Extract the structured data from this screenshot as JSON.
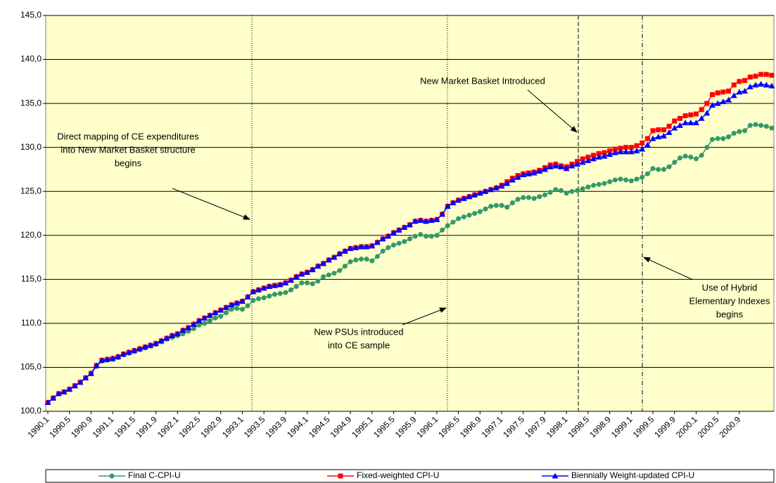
{
  "chart_data": {
    "type": "line",
    "categories": [
      "1990.1",
      null,
      null,
      null,
      "1990.5",
      null,
      null,
      null,
      "1990.9",
      null,
      null,
      null,
      "1991.1",
      null,
      null,
      null,
      "1991.5",
      null,
      null,
      null,
      "1991.9",
      null,
      null,
      null,
      "1992.1",
      null,
      null,
      null,
      "1992.5",
      null,
      null,
      null,
      "1992.9",
      null,
      null,
      null,
      "1993.1",
      null,
      null,
      null,
      "1993.5",
      null,
      null,
      null,
      "1993.9",
      null,
      null,
      null,
      "1994.1",
      null,
      null,
      null,
      "1994.5",
      null,
      null,
      null,
      "1994.9",
      null,
      null,
      null,
      "1995.1",
      null,
      null,
      null,
      "1995.5",
      null,
      null,
      null,
      "1995.9",
      null,
      null,
      null,
      "1996.1",
      null,
      null,
      null,
      "1996.5",
      null,
      null,
      null,
      "1996.9",
      null,
      null,
      null,
      "1997.1",
      null,
      null,
      null,
      "1997.5",
      null,
      null,
      null,
      "1997.9",
      null,
      null,
      null,
      "1998.1",
      null,
      null,
      null,
      "1998.5",
      null,
      null,
      null,
      "1998.9",
      null,
      null,
      null,
      "1999.1",
      null,
      null,
      null,
      "1999.5",
      null,
      null,
      null,
      "1999.9",
      null,
      null,
      null,
      "2000.1",
      null,
      null,
      null,
      "2000.5",
      null,
      null,
      null,
      "2000.9",
      null,
      null,
      null,
      null,
      null,
      null
    ],
    "series": [
      {
        "name": "Final C-CPI-U",
        "color": "#339966",
        "marker": "circle",
        "values": [
          101.0,
          101.5,
          102.0,
          102.2,
          102.5,
          102.9,
          103.3,
          103.8,
          104.3,
          105.1,
          105.7,
          105.8,
          105.9,
          106.1,
          106.4,
          106.6,
          106.8,
          107.0,
          107.2,
          107.4,
          107.6,
          107.9,
          108.2,
          108.4,
          108.6,
          108.8,
          109.1,
          109.4,
          109.8,
          110.0,
          110.3,
          110.6,
          110.8,
          111.2,
          111.6,
          111.7,
          111.6,
          112.0,
          112.6,
          112.8,
          112.9,
          113.1,
          113.3,
          113.4,
          113.5,
          113.8,
          114.2,
          114.6,
          114.6,
          114.5,
          114.8,
          115.3,
          115.5,
          115.7,
          116.0,
          116.5,
          117.0,
          117.2,
          117.3,
          117.3,
          117.1,
          117.6,
          118.2,
          118.6,
          118.9,
          119.1,
          119.3,
          119.6,
          119.9,
          120.1,
          119.9,
          119.9,
          120.0,
          120.6,
          121.1,
          121.5,
          121.9,
          122.1,
          122.3,
          122.5,
          122.7,
          123.0,
          123.3,
          123.4,
          123.4,
          123.2,
          123.7,
          124.1,
          124.3,
          124.3,
          124.2,
          124.4,
          124.6,
          124.9,
          125.2,
          125.1,
          124.8,
          125.0,
          125.1,
          125.3,
          125.5,
          125.7,
          125.8,
          125.9,
          126.1,
          126.3,
          126.4,
          126.3,
          126.2,
          126.4,
          126.6,
          127.0,
          127.6,
          127.5,
          127.5,
          127.8,
          128.3,
          128.8,
          129.0,
          128.9,
          128.7,
          129.1,
          130.0,
          130.9,
          131.0,
          131.0,
          131.2,
          131.6,
          131.8,
          131.9,
          132.5,
          132.6,
          132.5,
          132.4,
          132.2
        ]
      },
      {
        "name": "Fixed-weighted CPI-U",
        "color": "#ff0000",
        "marker": "square",
        "values": [
          101.0,
          101.5,
          102.0,
          102.2,
          102.5,
          102.9,
          103.3,
          103.8,
          104.3,
          105.2,
          105.8,
          105.9,
          106.0,
          106.2,
          106.5,
          106.7,
          106.9,
          107.1,
          107.3,
          107.5,
          107.7,
          108.0,
          108.3,
          108.6,
          108.8,
          109.2,
          109.5,
          109.9,
          110.3,
          110.6,
          110.9,
          111.2,
          111.5,
          111.8,
          112.1,
          112.3,
          112.5,
          113.0,
          113.6,
          113.8,
          114.0,
          114.2,
          114.3,
          114.4,
          114.6,
          114.9,
          115.3,
          115.6,
          115.8,
          116.1,
          116.5,
          116.8,
          117.2,
          117.5,
          117.9,
          118.2,
          118.5,
          118.6,
          118.7,
          118.7,
          118.8,
          119.2,
          119.6,
          119.9,
          120.3,
          120.6,
          120.9,
          121.2,
          121.6,
          121.7,
          121.6,
          121.7,
          121.8,
          122.4,
          123.3,
          123.7,
          124.0,
          124.2,
          124.4,
          124.6,
          124.8,
          125.0,
          125.2,
          125.4,
          125.7,
          126.1,
          126.5,
          126.8,
          127.0,
          127.1,
          127.2,
          127.4,
          127.7,
          128.0,
          128.1,
          127.9,
          127.8,
          128.1,
          128.4,
          128.7,
          128.9,
          129.1,
          129.3,
          129.4,
          129.6,
          129.8,
          129.9,
          130.0,
          130.0,
          130.2,
          130.5,
          131.0,
          131.9,
          132.0,
          132.0,
          132.4,
          133.0,
          133.3,
          133.6,
          133.7,
          133.8,
          134.3,
          135.0,
          136.0,
          136.2,
          136.3,
          136.4,
          137.1,
          137.5,
          137.6,
          138.0,
          138.1,
          138.3,
          138.3,
          138.2
        ]
      },
      {
        "name": "Biennially Weight-updated CPI-U",
        "color": "#0000ff",
        "marker": "triangle",
        "values": [
          101.0,
          101.5,
          102.0,
          102.2,
          102.5,
          102.9,
          103.3,
          103.8,
          104.3,
          105.2,
          105.8,
          105.9,
          106.0,
          106.2,
          106.5,
          106.7,
          106.9,
          107.1,
          107.3,
          107.5,
          107.7,
          108.0,
          108.3,
          108.6,
          108.8,
          109.2,
          109.5,
          109.9,
          110.3,
          110.6,
          110.9,
          111.2,
          111.5,
          111.8,
          112.1,
          112.3,
          112.5,
          113.0,
          113.6,
          113.8,
          114.0,
          114.2,
          114.3,
          114.4,
          114.6,
          114.9,
          115.3,
          115.6,
          115.8,
          116.1,
          116.5,
          116.8,
          117.2,
          117.5,
          117.9,
          118.2,
          118.5,
          118.6,
          118.7,
          118.7,
          118.8,
          119.2,
          119.6,
          119.9,
          120.3,
          120.6,
          120.9,
          121.2,
          121.6,
          121.7,
          121.6,
          121.7,
          121.8,
          122.4,
          123.3,
          123.7,
          124.0,
          124.2,
          124.4,
          124.6,
          124.8,
          125.0,
          125.2,
          125.4,
          125.6,
          125.9,
          126.3,
          126.6,
          126.9,
          127.0,
          127.1,
          127.3,
          127.5,
          127.8,
          127.9,
          127.8,
          127.6,
          127.9,
          128.1,
          128.3,
          128.5,
          128.7,
          128.9,
          129.0,
          129.2,
          129.4,
          129.5,
          129.5,
          129.5,
          129.6,
          129.8,
          130.3,
          131.0,
          131.2,
          131.3,
          131.7,
          132.2,
          132.5,
          132.8,
          132.8,
          132.8,
          133.3,
          133.9,
          134.8,
          135.0,
          135.2,
          135.4,
          135.9,
          136.3,
          136.4,
          136.9,
          137.1,
          137.2,
          137.1,
          137.0
        ]
      }
    ],
    "ylim": [
      100,
      145
    ],
    "yticks": [
      {
        "value": 100,
        "label": "100,0"
      },
      {
        "value": 105,
        "label": "105,0"
      },
      {
        "value": 110,
        "label": "110,0"
      },
      {
        "value": 115,
        "label": "115,0"
      },
      {
        "value": 120,
        "label": "120,0"
      },
      {
        "value": 125,
        "label": "125,0"
      },
      {
        "value": 130,
        "label": "130,0"
      },
      {
        "value": 135,
        "label": "135,0"
      },
      {
        "value": 140,
        "label": "140,0"
      },
      {
        "value": 145,
        "label": "145,0"
      }
    ],
    "grid": true,
    "legend": "bottom",
    "annotations": [
      {
        "lines": [
          "Direct mapping of CE expenditures",
          "into New Market Basket structure",
          "begins"
        ]
      },
      {
        "lines": [
          "New PSUs introduced",
          "into CE sample"
        ]
      },
      {
        "lines": [
          "New Market Basket Introduced"
        ]
      },
      {
        "lines": [
          "Use of Hybrid",
          "Elementary Indexes",
          "begins"
        ]
      }
    ]
  }
}
